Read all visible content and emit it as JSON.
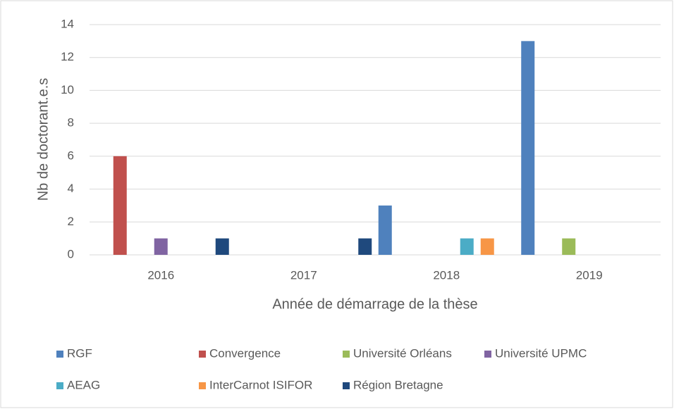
{
  "chart_data": {
    "type": "bar",
    "y_label": "Nb de doctorant.e.s",
    "x_label": "Année de démarrage de la thèse",
    "categories": [
      "2016",
      "2017",
      "2018",
      "2019"
    ],
    "series": [
      {
        "name": "RGF",
        "color": "#4f81bd",
        "values": [
          0,
          0,
          3,
          13
        ]
      },
      {
        "name": "Convergence",
        "color": "#c0504d",
        "values": [
          6,
          0,
          0,
          0
        ]
      },
      {
        "name": "Université Orléans",
        "color": "#9bbb59",
        "values": [
          0,
          0,
          0,
          1
        ]
      },
      {
        "name": "Université UPMC",
        "color": "#8064a2",
        "values": [
          1,
          0,
          0,
          0
        ]
      },
      {
        "name": "AEAG",
        "color": "#4bacc6",
        "values": [
          0,
          0,
          1,
          0
        ]
      },
      {
        "name": "InterCarnot ISIFOR",
        "color": "#f79646",
        "values": [
          0,
          0,
          1,
          0
        ]
      },
      {
        "name": "Région Bretagne",
        "color": "#1f497d",
        "values": [
          1,
          1,
          0,
          0
        ]
      }
    ],
    "ylim": [
      0,
      14
    ],
    "yticks": [
      0,
      2,
      4,
      6,
      8,
      10,
      12,
      14
    ],
    "grid": true,
    "legend": "bottom"
  }
}
